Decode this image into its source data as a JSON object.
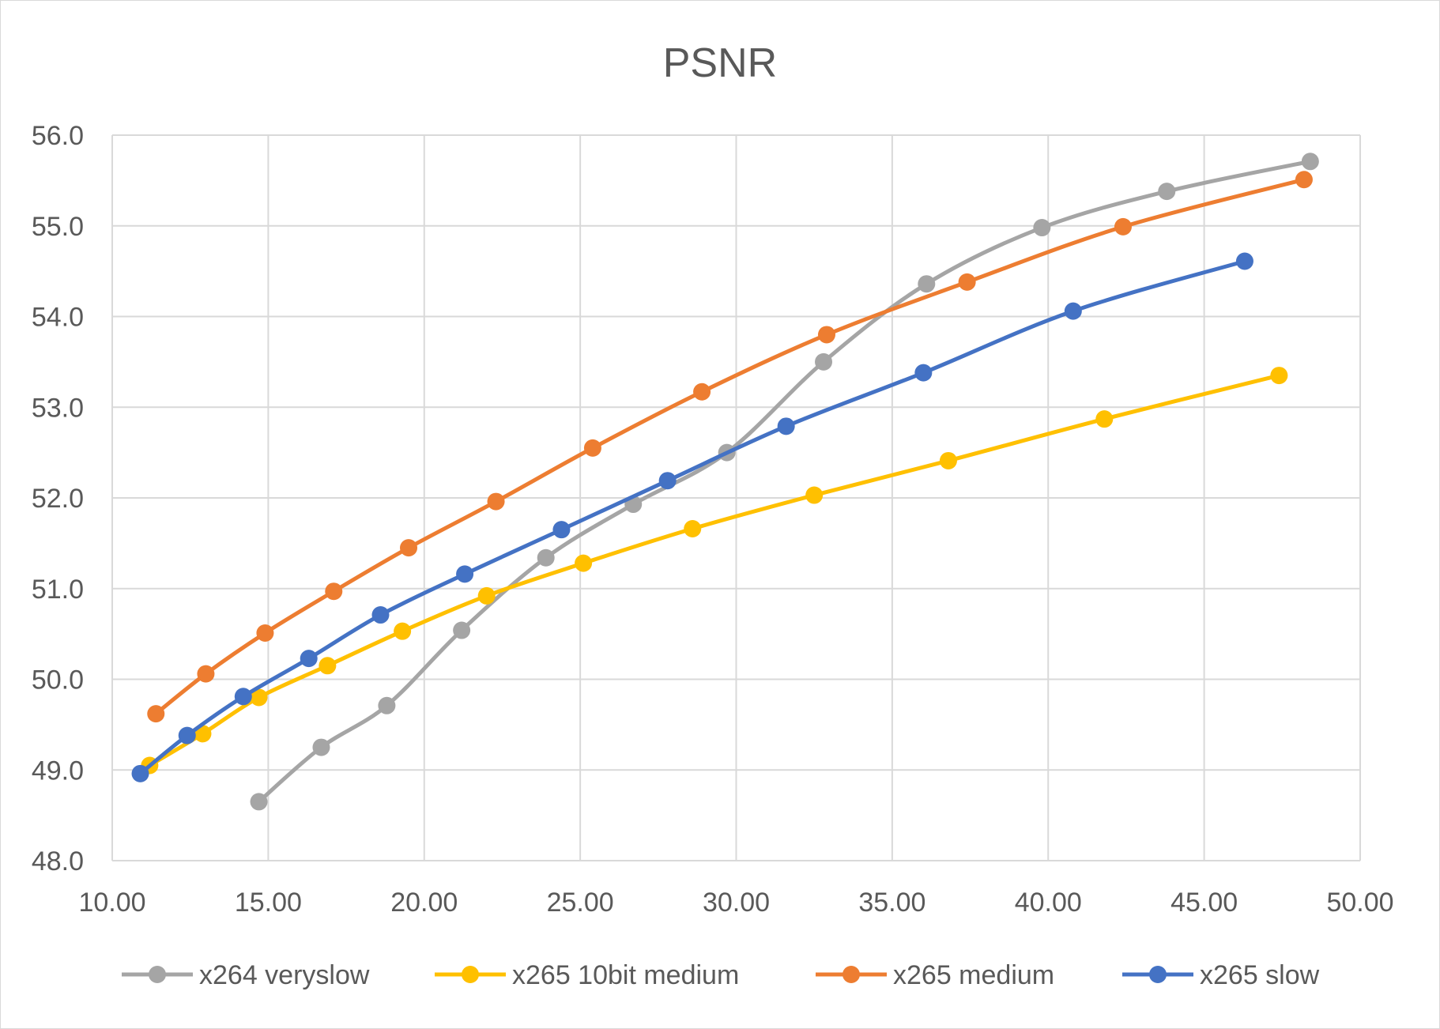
{
  "chart_data": {
    "type": "line",
    "title": "PSNR",
    "xlabel": "",
    "ylabel": "",
    "xlim": [
      10,
      50
    ],
    "ylim": [
      48,
      56
    ],
    "x_ticks": [
      10,
      15,
      20,
      25,
      30,
      35,
      40,
      45,
      50
    ],
    "x_tick_labels": [
      "10.00",
      "15.00",
      "20.00",
      "25.00",
      "30.00",
      "35.00",
      "40.00",
      "45.00",
      "50.00"
    ],
    "y_ticks": [
      48,
      49,
      50,
      51,
      52,
      53,
      54,
      55,
      56
    ],
    "y_tick_labels": [
      "48.0",
      "49.0",
      "50.0",
      "51.0",
      "52.0",
      "53.0",
      "54.0",
      "55.0",
      "56.0"
    ],
    "grid": true,
    "legend_position": "bottom",
    "series": [
      {
        "name": "x264 veryslow",
        "color": "#a5a5a5",
        "x": [
          14.7,
          16.7,
          18.8,
          21.2,
          23.9,
          26.7,
          29.7,
          32.8,
          36.1,
          39.8,
          43.8,
          48.4
        ],
        "y": [
          48.65,
          49.25,
          49.71,
          50.54,
          51.34,
          51.93,
          52.5,
          53.5,
          54.36,
          54.98,
          55.38,
          55.71
        ]
      },
      {
        "name": "x265 10bit medium",
        "color": "#ffc000",
        "x": [
          11.2,
          12.9,
          14.7,
          16.9,
          19.3,
          22.0,
          25.1,
          28.6,
          32.5,
          36.8,
          41.8,
          47.4
        ],
        "y": [
          49.05,
          49.4,
          49.8,
          50.15,
          50.53,
          50.92,
          51.28,
          51.66,
          52.03,
          52.41,
          52.87,
          53.35
        ]
      },
      {
        "name": "x265 medium",
        "color": "#ed7d31",
        "x": [
          11.4,
          13.0,
          14.9,
          17.1,
          19.5,
          22.3,
          25.4,
          28.9,
          32.9,
          37.4,
          42.4,
          48.2
        ],
        "y": [
          49.62,
          50.06,
          50.51,
          50.97,
          51.45,
          51.96,
          52.55,
          53.17,
          53.8,
          54.38,
          54.99,
          55.51
        ]
      },
      {
        "name": "x265 slow",
        "color": "#4472c4",
        "x": [
          10.9,
          12.4,
          14.2,
          16.3,
          18.6,
          21.3,
          24.4,
          27.8,
          31.6,
          36.0,
          40.8,
          46.3
        ],
        "y": [
          48.96,
          49.38,
          49.81,
          50.23,
          50.71,
          51.16,
          51.65,
          52.19,
          52.79,
          53.38,
          54.06,
          54.61
        ]
      }
    ]
  }
}
